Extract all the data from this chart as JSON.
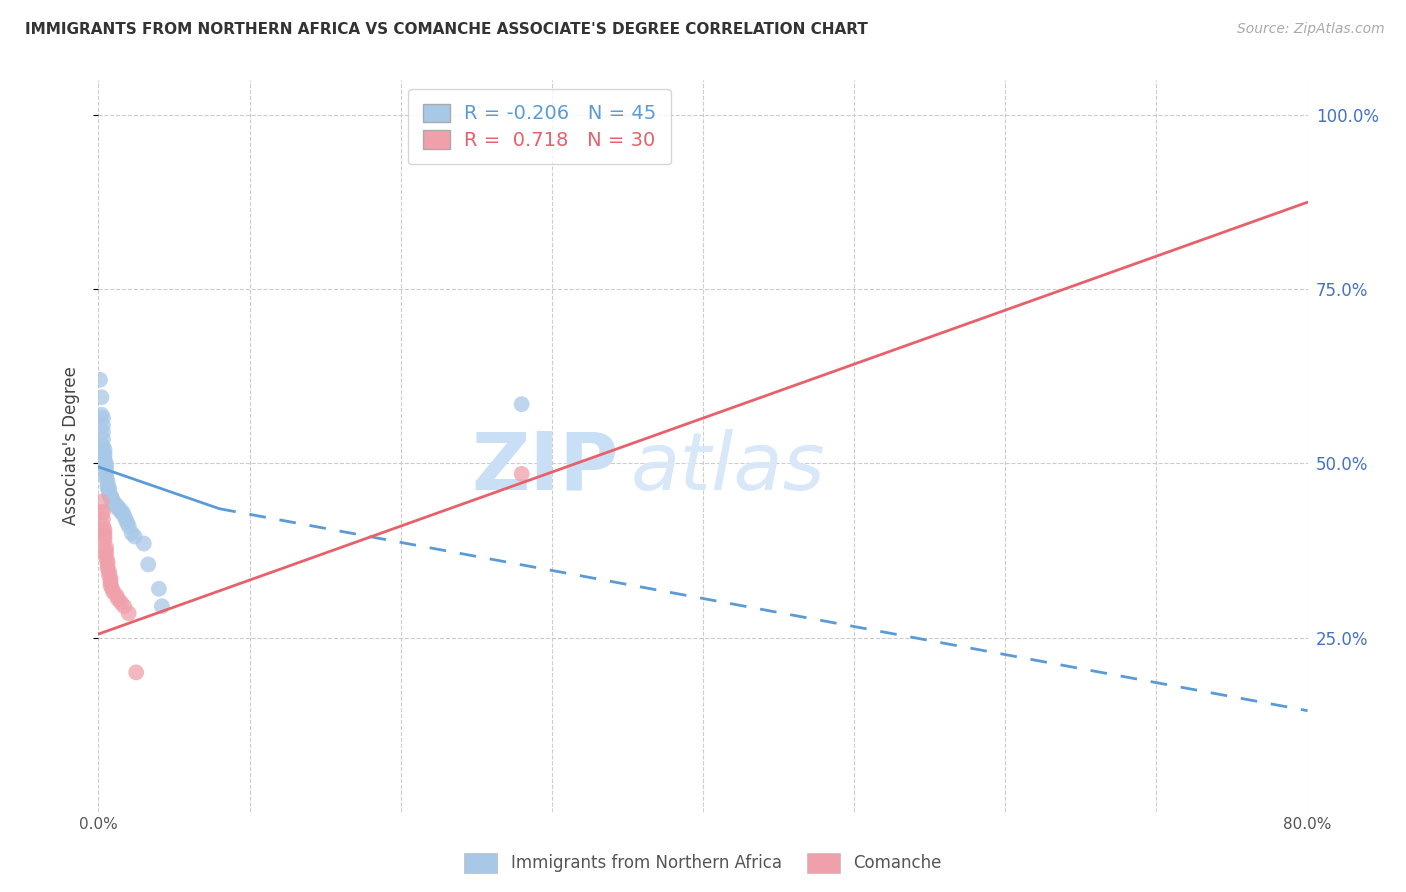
{
  "title": "IMMIGRANTS FROM NORTHERN AFRICA VS COMANCHE ASSOCIATE'S DEGREE CORRELATION CHART",
  "source": "Source: ZipAtlas.com",
  "ylabel": "Associate's Degree",
  "legend_blue_R": "-0.206",
  "legend_blue_N": "45",
  "legend_pink_R": "0.718",
  "legend_pink_N": "30",
  "blue_color": "#a8c8e8",
  "pink_color": "#f0a0aa",
  "line_blue_color": "#5b9bd5",
  "line_pink_color": "#e8606a",
  "watermark_color": "#ddeeff",
  "x_min": 0.0,
  "x_max": 0.8,
  "y_min": 0.0,
  "y_max": 1.05,
  "blue_scatter": [
    [
      0.001,
      0.62
    ],
    [
      0.002,
      0.595
    ],
    [
      0.002,
      0.57
    ],
    [
      0.003,
      0.565
    ],
    [
      0.003,
      0.555
    ],
    [
      0.003,
      0.545
    ],
    [
      0.003,
      0.535
    ],
    [
      0.003,
      0.525
    ],
    [
      0.004,
      0.52
    ],
    [
      0.004,
      0.515
    ],
    [
      0.004,
      0.51
    ],
    [
      0.004,
      0.505
    ],
    [
      0.005,
      0.5
    ],
    [
      0.005,
      0.495
    ],
    [
      0.005,
      0.49
    ],
    [
      0.005,
      0.485
    ],
    [
      0.005,
      0.48
    ],
    [
      0.006,
      0.475
    ],
    [
      0.006,
      0.47
    ],
    [
      0.006,
      0.465
    ],
    [
      0.007,
      0.465
    ],
    [
      0.007,
      0.46
    ],
    [
      0.007,
      0.455
    ],
    [
      0.008,
      0.455
    ],
    [
      0.008,
      0.45
    ],
    [
      0.009,
      0.45
    ],
    [
      0.009,
      0.445
    ],
    [
      0.01,
      0.445
    ],
    [
      0.011,
      0.44
    ],
    [
      0.012,
      0.44
    ],
    [
      0.013,
      0.435
    ],
    [
      0.014,
      0.435
    ],
    [
      0.015,
      0.43
    ],
    [
      0.016,
      0.43
    ],
    [
      0.017,
      0.425
    ],
    [
      0.018,
      0.42
    ],
    [
      0.019,
      0.415
    ],
    [
      0.02,
      0.41
    ],
    [
      0.022,
      0.4
    ],
    [
      0.024,
      0.395
    ],
    [
      0.03,
      0.385
    ],
    [
      0.033,
      0.355
    ],
    [
      0.04,
      0.32
    ],
    [
      0.042,
      0.295
    ],
    [
      0.28,
      0.585
    ]
  ],
  "pink_scatter": [
    [
      0.002,
      0.445
    ],
    [
      0.002,
      0.43
    ],
    [
      0.003,
      0.43
    ],
    [
      0.003,
      0.42
    ],
    [
      0.003,
      0.41
    ],
    [
      0.004,
      0.405
    ],
    [
      0.004,
      0.4
    ],
    [
      0.004,
      0.395
    ],
    [
      0.004,
      0.39
    ],
    [
      0.005,
      0.38
    ],
    [
      0.005,
      0.375
    ],
    [
      0.005,
      0.37
    ],
    [
      0.005,
      0.365
    ],
    [
      0.006,
      0.36
    ],
    [
      0.006,
      0.355
    ],
    [
      0.006,
      0.35
    ],
    [
      0.007,
      0.345
    ],
    [
      0.007,
      0.34
    ],
    [
      0.008,
      0.335
    ],
    [
      0.008,
      0.33
    ],
    [
      0.008,
      0.325
    ],
    [
      0.009,
      0.32
    ],
    [
      0.01,
      0.315
    ],
    [
      0.012,
      0.31
    ],
    [
      0.013,
      0.305
    ],
    [
      0.015,
      0.3
    ],
    [
      0.017,
      0.295
    ],
    [
      0.02,
      0.285
    ],
    [
      0.025,
      0.2
    ],
    [
      0.28,
      0.485
    ]
  ],
  "blue_line_solid": [
    [
      0.0,
      0.495
    ],
    [
      0.08,
      0.435
    ]
  ],
  "blue_line_dash": [
    [
      0.08,
      0.435
    ],
    [
      0.8,
      0.145
    ]
  ],
  "pink_line": [
    [
      0.0,
      0.255
    ],
    [
      0.8,
      0.875
    ]
  ],
  "x_ticks": [
    0.0,
    0.1,
    0.2,
    0.3,
    0.4,
    0.5,
    0.6,
    0.7,
    0.8
  ],
  "y_ticks": [
    0.25,
    0.5,
    0.75,
    1.0
  ],
  "y_tick_labels_right": [
    "25.0%",
    "50.0%",
    "75.0%",
    "100.0%"
  ],
  "right_axis_color": "#4472c4",
  "grid_color": "#cccccc",
  "title_fontsize": 11,
  "source_fontsize": 10,
  "legend_fontsize": 13,
  "bottom_legend_labels": [
    "Immigrants from Northern Africa",
    "Comanche"
  ]
}
